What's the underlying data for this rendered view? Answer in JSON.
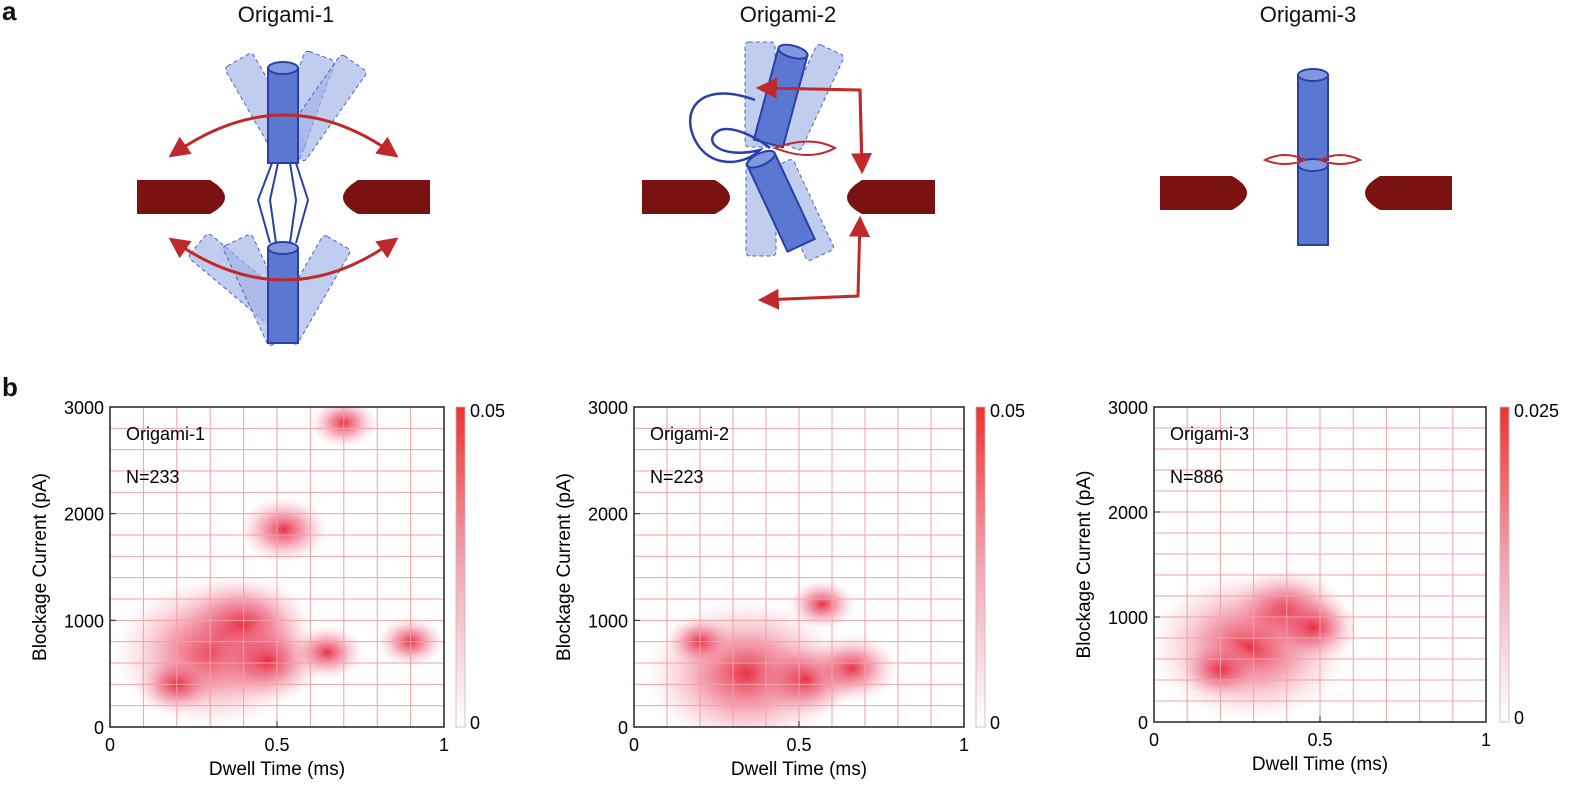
{
  "panel_a": {
    "label": "a",
    "titles": [
      "Origami-1",
      "Origami-2",
      "Origami-3"
    ]
  },
  "panel_b": {
    "label": "b"
  },
  "colors": {
    "origami_blue": "#5a78d2",
    "pore_red": "#7a1212",
    "arrow_red": "#c0282b",
    "heat_max": "#f0322e",
    "grid": "#f1a2a2"
  },
  "chart_data": [
    {
      "type": "heatmap",
      "annotation_name": "Origami-1",
      "annotation_count": "N=233",
      "xlabel": "Dwell Time (ms)",
      "ylabel": "Blockage Current (pA)",
      "xlim": [
        0,
        1
      ],
      "ylim": [
        0,
        3000
      ],
      "xticks": [
        "0",
        "0.5",
        "1"
      ],
      "yticks": [
        "0",
        "1000",
        "2000",
        "3000"
      ],
      "colorbar": {
        "min": "0",
        "max": "0.05",
        "min_value": 0,
        "max_value": 0.05
      },
      "grid": true,
      "hotspots": [
        {
          "x": 0.31,
          "y": 700,
          "value": 0.05
        },
        {
          "x": 0.4,
          "y": 950,
          "value": 0.03
        },
        {
          "x": 0.47,
          "y": 620,
          "value": 0.022
        },
        {
          "x": 0.52,
          "y": 1850,
          "value": 0.015
        },
        {
          "x": 0.2,
          "y": 400,
          "value": 0.012
        },
        {
          "x": 0.65,
          "y": 700,
          "value": 0.01
        },
        {
          "x": 0.7,
          "y": 2850,
          "value": 0.008
        },
        {
          "x": 0.9,
          "y": 800,
          "value": 0.008
        }
      ]
    },
    {
      "type": "heatmap",
      "annotation_name": "Origami-2",
      "annotation_count": "N=223",
      "xlabel": "Dwell Time (ms)",
      "ylabel": "Blockage Current (pA)",
      "xlim": [
        0,
        1
      ],
      "ylim": [
        0,
        3000
      ],
      "xticks": [
        "0",
        "0.5",
        "1"
      ],
      "yticks": [
        "0",
        "1000",
        "2000",
        "3000"
      ],
      "colorbar": {
        "min": "0",
        "max": "0.05",
        "min_value": 0,
        "max_value": 0.05
      },
      "grid": true,
      "hotspots": [
        {
          "x": 0.34,
          "y": 500,
          "value": 0.05
        },
        {
          "x": 0.52,
          "y": 450,
          "value": 0.02
        },
        {
          "x": 0.66,
          "y": 550,
          "value": 0.016
        },
        {
          "x": 0.57,
          "y": 1150,
          "value": 0.008
        },
        {
          "x": 0.2,
          "y": 800,
          "value": 0.008
        }
      ]
    },
    {
      "type": "heatmap",
      "annotation_name": "Origami-3",
      "annotation_count": "N=886",
      "xlabel": "Dwell Time (ms)",
      "ylabel": "Blockage Current (pA)",
      "xlim": [
        0,
        1
      ],
      "ylim": [
        0,
        3000
      ],
      "xticks": [
        "0",
        "0.5",
        "1"
      ],
      "yticks": [
        "0",
        "1000",
        "2000",
        "3000"
      ],
      "colorbar": {
        "min": "0",
        "max": "0.025",
        "min_value": 0,
        "max_value": 0.025
      },
      "grid": true,
      "hotspots": [
        {
          "x": 0.29,
          "y": 720,
          "value": 0.025
        },
        {
          "x": 0.4,
          "y": 1050,
          "value": 0.012
        },
        {
          "x": 0.48,
          "y": 900,
          "value": 0.008
        },
        {
          "x": 0.2,
          "y": 500,
          "value": 0.006
        }
      ]
    }
  ]
}
